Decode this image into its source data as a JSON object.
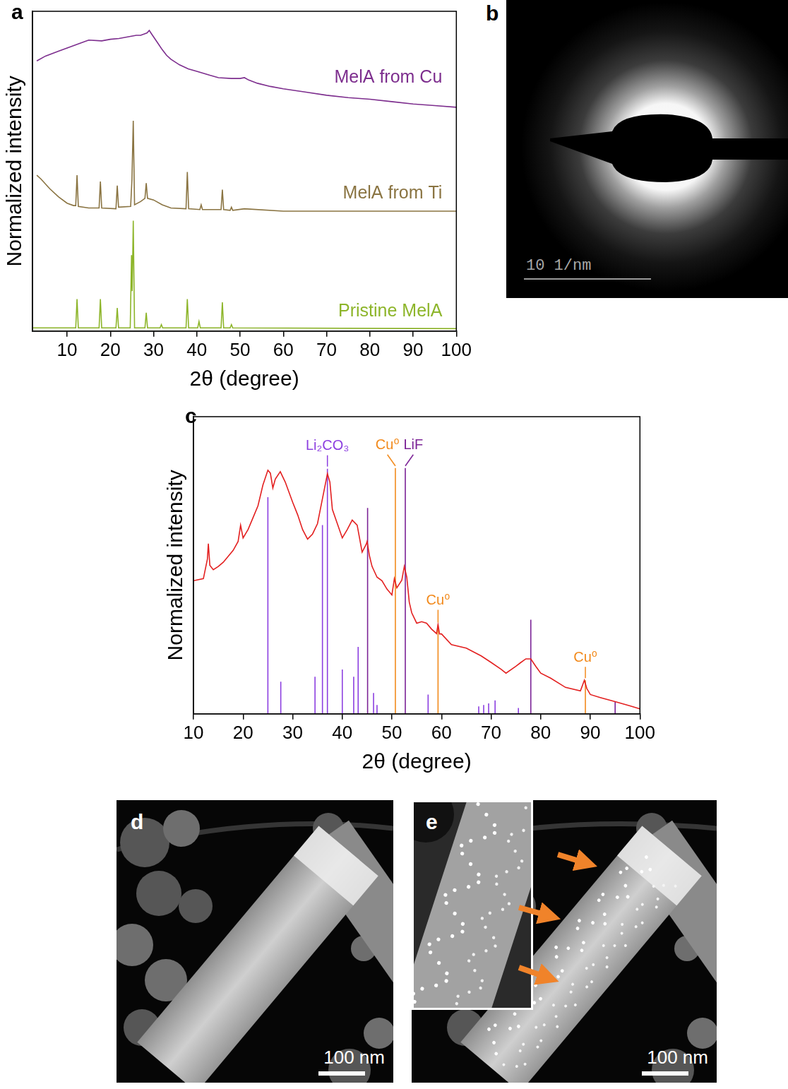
{
  "chart_data": [
    {
      "panel": "a",
      "type": "line",
      "x_label": "2θ (degree)",
      "y_label": "Normalized intensity",
      "xlim": [
        2,
        100
      ],
      "xticks": [
        10,
        20,
        30,
        40,
        50,
        60,
        70,
        80,
        90,
        100
      ],
      "ylim": [
        0,
        4
      ],
      "tick_labels": "x",
      "grid": false,
      "series": [
        {
          "name": "MelA from Cu",
          "color": "#7d2e8e",
          "x": [
            3,
            5,
            8,
            10,
            13,
            15,
            18,
            20,
            22,
            24,
            26,
            27,
            28,
            28.5,
            29,
            29.5,
            30,
            31,
            32,
            33,
            34,
            36,
            38,
            40,
            43,
            45,
            48,
            50,
            51,
            52,
            54,
            57,
            60,
            65,
            70,
            75,
            80,
            85,
            90,
            95,
            100
          ],
          "values": [
            3.38,
            3.44,
            3.5,
            3.54,
            3.6,
            3.64,
            3.63,
            3.65,
            3.66,
            3.68,
            3.7,
            3.7,
            3.72,
            3.73,
            3.76,
            3.72,
            3.68,
            3.6,
            3.52,
            3.45,
            3.4,
            3.33,
            3.28,
            3.25,
            3.2,
            3.17,
            3.16,
            3.16,
            3.17,
            3.14,
            3.1,
            3.06,
            3.03,
            2.99,
            2.95,
            2.92,
            2.9,
            2.87,
            2.84,
            2.82,
            2.8
          ]
        },
        {
          "name": "MelA from Ti",
          "color": "#8a7442",
          "x": [
            3,
            4,
            6,
            8,
            10,
            11.5,
            12.0,
            12.3,
            12.6,
            15,
            17.4,
            17.7,
            18.0,
            21.3,
            21.6,
            21.9,
            24.7,
            25.0,
            25.3,
            25.6,
            27.0,
            28.0,
            28.3,
            28.6,
            30,
            32,
            34,
            37.5,
            37.8,
            38.1,
            40.7,
            41.0,
            41.3,
            43,
            45.6,
            45.9,
            46.2,
            47.7,
            48.0,
            48.3,
            51,
            60,
            80,
            100
          ],
          "values": [
            1.95,
            1.9,
            1.78,
            1.68,
            1.6,
            1.57,
            1.57,
            1.95,
            1.56,
            1.54,
            1.54,
            1.87,
            1.54,
            1.53,
            1.82,
            1.55,
            1.56,
            1.9,
            2.63,
            1.58,
            1.62,
            1.66,
            1.85,
            1.66,
            1.64,
            1.58,
            1.54,
            1.53,
            1.99,
            1.53,
            1.52,
            1.58,
            1.52,
            1.52,
            1.52,
            1.77,
            1.52,
            1.51,
            1.55,
            1.51,
            1.53,
            1.5,
            1.5,
            1.5
          ]
        },
        {
          "name": "Pristine MelA",
          "color": "#8db52a",
          "x": [
            2,
            12.0,
            12.3,
            12.6,
            17.4,
            17.7,
            18.0,
            21.3,
            21.6,
            21.9,
            24.6,
            24.9,
            25.05,
            25.3,
            25.6,
            28.0,
            28.3,
            28.6,
            31.5,
            31.8,
            32.1,
            37.5,
            37.8,
            38.1,
            40.2,
            40.5,
            40.8,
            45.6,
            45.9,
            46.2,
            47.7,
            48.0,
            48.3,
            100
          ],
          "values": [
            0.04,
            0.04,
            0.4,
            0.04,
            0.04,
            0.4,
            0.04,
            0.04,
            0.29,
            0.04,
            0.04,
            0.95,
            0.5,
            1.38,
            0.04,
            0.04,
            0.23,
            0.04,
            0.04,
            0.08,
            0.04,
            0.04,
            0.4,
            0.04,
            0.04,
            0.12,
            0.04,
            0.04,
            0.36,
            0.04,
            0.04,
            0.08,
            0.04,
            0.03
          ]
        }
      ]
    },
    {
      "panel": "c",
      "type": "line",
      "x_label": "2θ (degree)",
      "y_label": "Normalized intensity",
      "xlim": [
        10,
        100
      ],
      "xticks": [
        10,
        20,
        30,
        40,
        50,
        60,
        70,
        80,
        90,
        100
      ],
      "ylim": [
        0,
        100
      ],
      "tick_labels": "x",
      "grid": false,
      "series": [
        {
          "color": "#e32020",
          "x": [
            10,
            12,
            12.8,
            13,
            13.3,
            14,
            15,
            16,
            17,
            18,
            19,
            19.5,
            20,
            21,
            22,
            23,
            24,
            25,
            25.5,
            26,
            26.5,
            27.5,
            28.5,
            30,
            31,
            32,
            33,
            34,
            35,
            36,
            37,
            37.5,
            38,
            39,
            40,
            41,
            42,
            43,
            44,
            44.8,
            45,
            45.5,
            46,
            47,
            48,
            49,
            50,
            50.5,
            51,
            52,
            52.5,
            53,
            53.5,
            54,
            55,
            56,
            57,
            58,
            59,
            59.3,
            59.6,
            60,
            62,
            65,
            68,
            70,
            72,
            73,
            75,
            76,
            77,
            78,
            79,
            80,
            82,
            85,
            88,
            88.8,
            89.3,
            90,
            92,
            95,
            98,
            100
          ],
          "values": [
            44.8,
            45.5,
            52,
            57.3,
            50,
            48.5,
            49.6,
            51,
            53,
            55,
            58,
            63.5,
            59.2,
            62,
            66,
            70,
            77,
            82,
            81,
            76,
            79,
            81.5,
            78,
            71.2,
            67,
            62,
            58.8,
            60.5,
            64,
            72.4,
            80.8,
            78,
            68.8,
            64,
            59.2,
            62,
            65.2,
            63.5,
            54.4,
            57,
            58,
            53,
            49.6,
            46,
            44.8,
            42,
            40,
            45.5,
            42.4,
            45,
            49.6,
            46,
            37.6,
            34,
            30.5,
            31,
            30.5,
            28.5,
            27,
            30,
            26.9,
            26.9,
            23.3,
            22.1,
            19.5,
            17.3,
            15,
            13.7,
            16,
            17.3,
            18.5,
            18.5,
            16,
            13.7,
            12,
            8.9,
            7.7,
            11.3,
            8.5,
            6.5,
            5.5,
            4.1,
            2.7,
            1.7
          ]
        },
        {
          "name": "Li₂CO₃",
          "type": "stick",
          "color": "#8c3fe0",
          "x": [
            25.0,
            27.6,
            34.5,
            36.0,
            37.0,
            40.0,
            42.3,
            43.2,
            46.3,
            47.0,
            57.3,
            67.5,
            68.5,
            69.5,
            70.8,
            75.5
          ],
          "values": [
            72.9,
            10.8,
            12.5,
            63.5,
            82.5,
            14.9,
            12.5,
            22.5,
            7,
            3,
            6.5,
            2.5,
            3,
            3.5,
            4.5,
            2
          ]
        },
        {
          "name": "LiF",
          "type": "stick",
          "color": "#7b2296",
          "x": [
            45.1,
            52.7,
            78.0,
            95.0
          ],
          "values": [
            69.3,
            82.7,
            31.7,
            4
          ]
        },
        {
          "name": "Cu⁰",
          "type": "stick",
          "color": "#f28a1c",
          "x": [
            50.7,
            59.3,
            89.0
          ],
          "values": [
            82.7,
            30,
            11.3
          ]
        }
      ],
      "annotations": [
        {
          "text": "Li₂CO₃",
          "x": 37.0
        },
        {
          "text": "Cu⁰",
          "x": 50.7
        },
        {
          "text": "LiF",
          "x": 52.7
        },
        {
          "text": "Cu⁰",
          "x": 59.3
        },
        {
          "text": "Cu⁰",
          "x": 89.0
        }
      ]
    }
  ],
  "images": [
    {
      "panel": "b",
      "type": "diffraction",
      "scale_bar": "10 1/nm"
    },
    {
      "panel": "d",
      "type": "micrograph",
      "scale_bar": "100 nm"
    },
    {
      "panel": "e",
      "type": "micrograph",
      "scale_bar": "100 nm"
    }
  ]
}
